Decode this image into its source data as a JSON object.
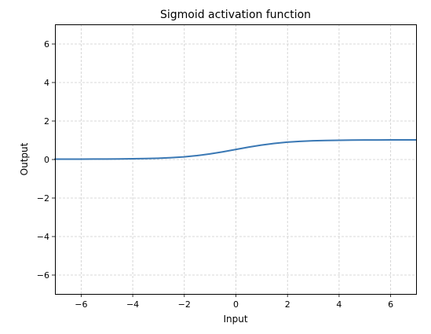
{
  "chart_data": {
    "type": "line",
    "title": "Sigmoid activation function",
    "xlabel": "Input",
    "ylabel": "Output",
    "xlim": [
      -7,
      7
    ],
    "ylim": [
      -7,
      7
    ],
    "xticks": [
      -6,
      -4,
      -2,
      0,
      2,
      4,
      6
    ],
    "yticks": [
      -6,
      -4,
      -2,
      0,
      2,
      4,
      6
    ],
    "xtick_labels": [
      "−6",
      "−4",
      "−2",
      "0",
      "2",
      "4",
      "6"
    ],
    "ytick_labels": [
      "−6",
      "−4",
      "−2",
      "0",
      "2",
      "4",
      "6"
    ],
    "grid": true,
    "grid_style": "dashed",
    "series": [
      {
        "color": "#3a78b4",
        "x": [
          -7,
          -6.5,
          -6,
          -5.5,
          -5,
          -4.5,
          -4,
          -3.5,
          -3,
          -2.5,
          -2,
          -1.5,
          -1,
          -0.5,
          0,
          0.5,
          1,
          1.5,
          2,
          2.5,
          3,
          3.5,
          4,
          4.5,
          5,
          5.5,
          6,
          6.5,
          7
        ],
        "y": [
          0.0009,
          0.0015,
          0.0025,
          0.0041,
          0.0067,
          0.011,
          0.018,
          0.0293,
          0.0474,
          0.0759,
          0.1192,
          0.1824,
          0.2689,
          0.3775,
          0.5,
          0.6225,
          0.7311,
          0.8176,
          0.8808,
          0.9241,
          0.9526,
          0.9707,
          0.982,
          0.989,
          0.9933,
          0.9959,
          0.9975,
          0.9985,
          0.9991
        ]
      }
    ]
  }
}
